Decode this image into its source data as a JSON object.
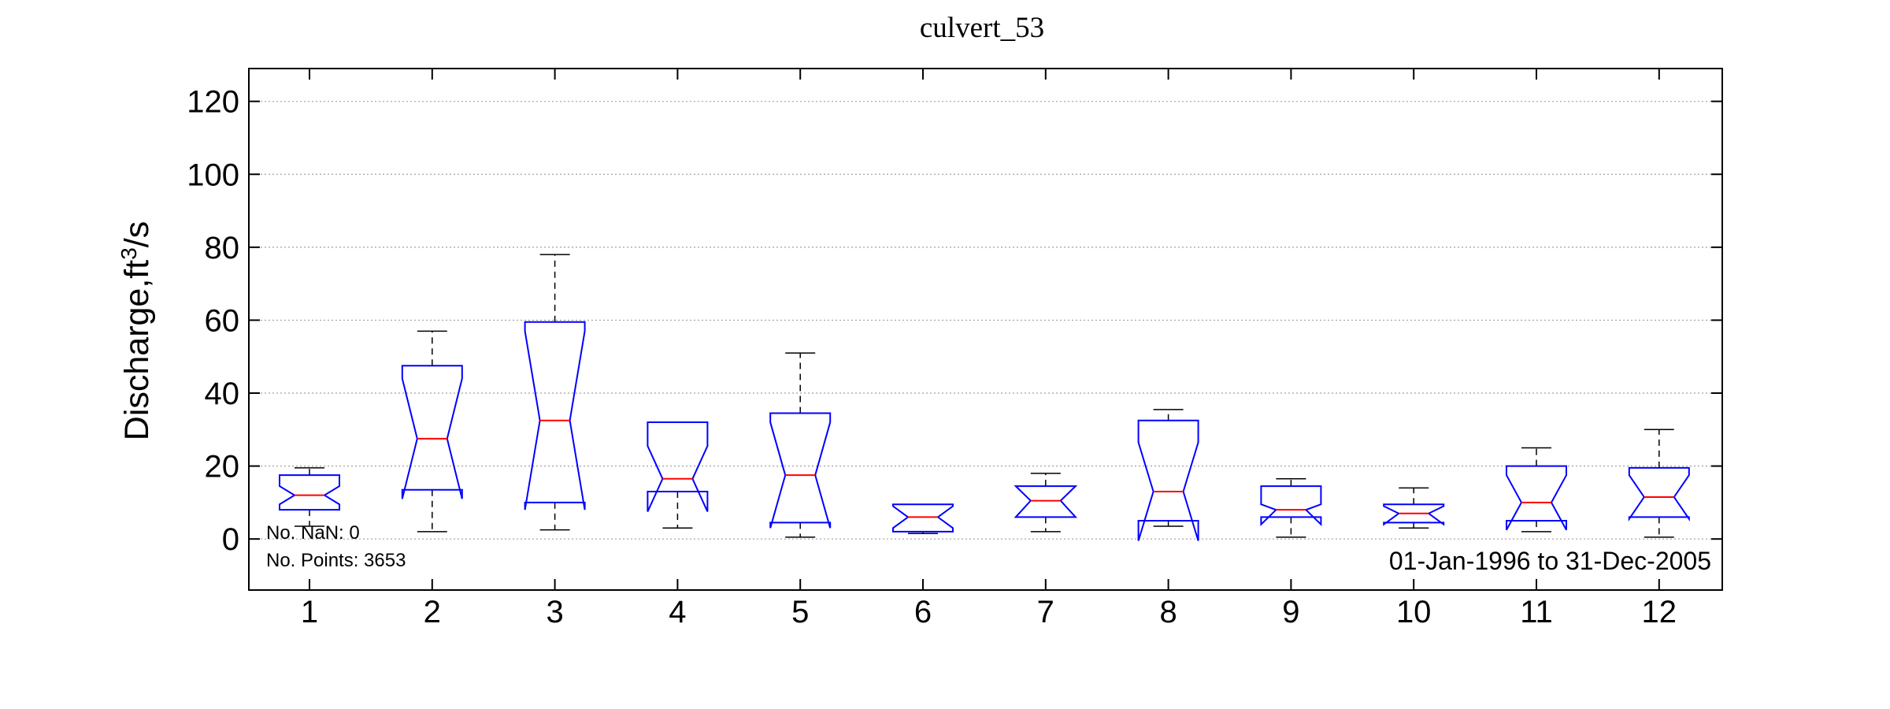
{
  "chart_data": {
    "type": "boxplot",
    "title": "culvert_53",
    "ylabel": "Discharge,ft",
    "ylabel_sup": "3",
    "ylabel_suffix": "/s",
    "xlabel": "",
    "ylim": [
      -14,
      129
    ],
    "yticks": [
      0,
      20,
      40,
      60,
      80,
      100,
      120
    ],
    "grid": true,
    "categories": [
      "1",
      "2",
      "3",
      "4",
      "5",
      "6",
      "7",
      "8",
      "9",
      "10",
      "11",
      "12"
    ],
    "boxes": [
      {
        "label": "1",
        "lower_whisker": 3.5,
        "q1": 8,
        "median": 12,
        "q3": 17.5,
        "upper_whisker": 19.5,
        "notch_low": 9.5,
        "notch_high": 14.5
      },
      {
        "label": "2",
        "lower_whisker": 2,
        "q1": 13.5,
        "median": 27.5,
        "q3": 47.5,
        "upper_whisker": 57,
        "notch_low": 11,
        "notch_high": 44
      },
      {
        "label": "3",
        "lower_whisker": 2.5,
        "q1": 10,
        "median": 32.5,
        "q3": 59.5,
        "upper_whisker": 78,
        "notch_low": 8,
        "notch_high": 57
      },
      {
        "label": "4",
        "lower_whisker": 3,
        "q1": 13,
        "median": 16.5,
        "q3": 32,
        "upper_whisker": 32,
        "notch_low": 7.5,
        "notch_high": 25.5
      },
      {
        "label": "5",
        "lower_whisker": 0.5,
        "q1": 4.5,
        "median": 17.5,
        "q3": 34.5,
        "upper_whisker": 51,
        "notch_low": 3,
        "notch_high": 32
      },
      {
        "label": "6",
        "lower_whisker": 1.5,
        "q1": 2,
        "median": 6,
        "q3": 9.5,
        "upper_whisker": 9.5,
        "notch_low": 3,
        "notch_high": 9
      },
      {
        "label": "7",
        "lower_whisker": 2,
        "q1": 6,
        "median": 10.5,
        "q3": 14.5,
        "upper_whisker": 18,
        "notch_low": 6,
        "notch_high": 14.5
      },
      {
        "label": "8",
        "lower_whisker": 3.5,
        "q1": 5,
        "median": 13,
        "q3": 32.5,
        "upper_whisker": 35.5,
        "notch_low": -0.5,
        "notch_high": 26.5
      },
      {
        "label": "9",
        "lower_whisker": 0.5,
        "q1": 6,
        "median": 8,
        "q3": 14.5,
        "upper_whisker": 16.5,
        "notch_low": 4,
        "notch_high": 9.5
      },
      {
        "label": "10",
        "lower_whisker": 3,
        "q1": 4.5,
        "median": 7,
        "q3": 9.5,
        "upper_whisker": 14,
        "notch_low": 4,
        "notch_high": 9
      },
      {
        "label": "11",
        "lower_whisker": 2,
        "q1": 5,
        "median": 10,
        "q3": 20,
        "upper_whisker": 25,
        "notch_low": 2.5,
        "notch_high": 17.5
      },
      {
        "label": "12",
        "lower_whisker": 0.5,
        "q1": 6,
        "median": 11.5,
        "q3": 19.5,
        "upper_whisker": 30,
        "notch_low": 5.5,
        "notch_high": 17.5
      }
    ],
    "annotations": {
      "nan_count": "No. NaN: 0",
      "point_count": "No. Points: 3653",
      "date_range": "01-Jan-1996 to 31-Dec-2005"
    },
    "colors": {
      "box": "#0000ff",
      "median": "#ff0000",
      "whisker": "#000000",
      "grid": "#a0a0a0"
    }
  }
}
